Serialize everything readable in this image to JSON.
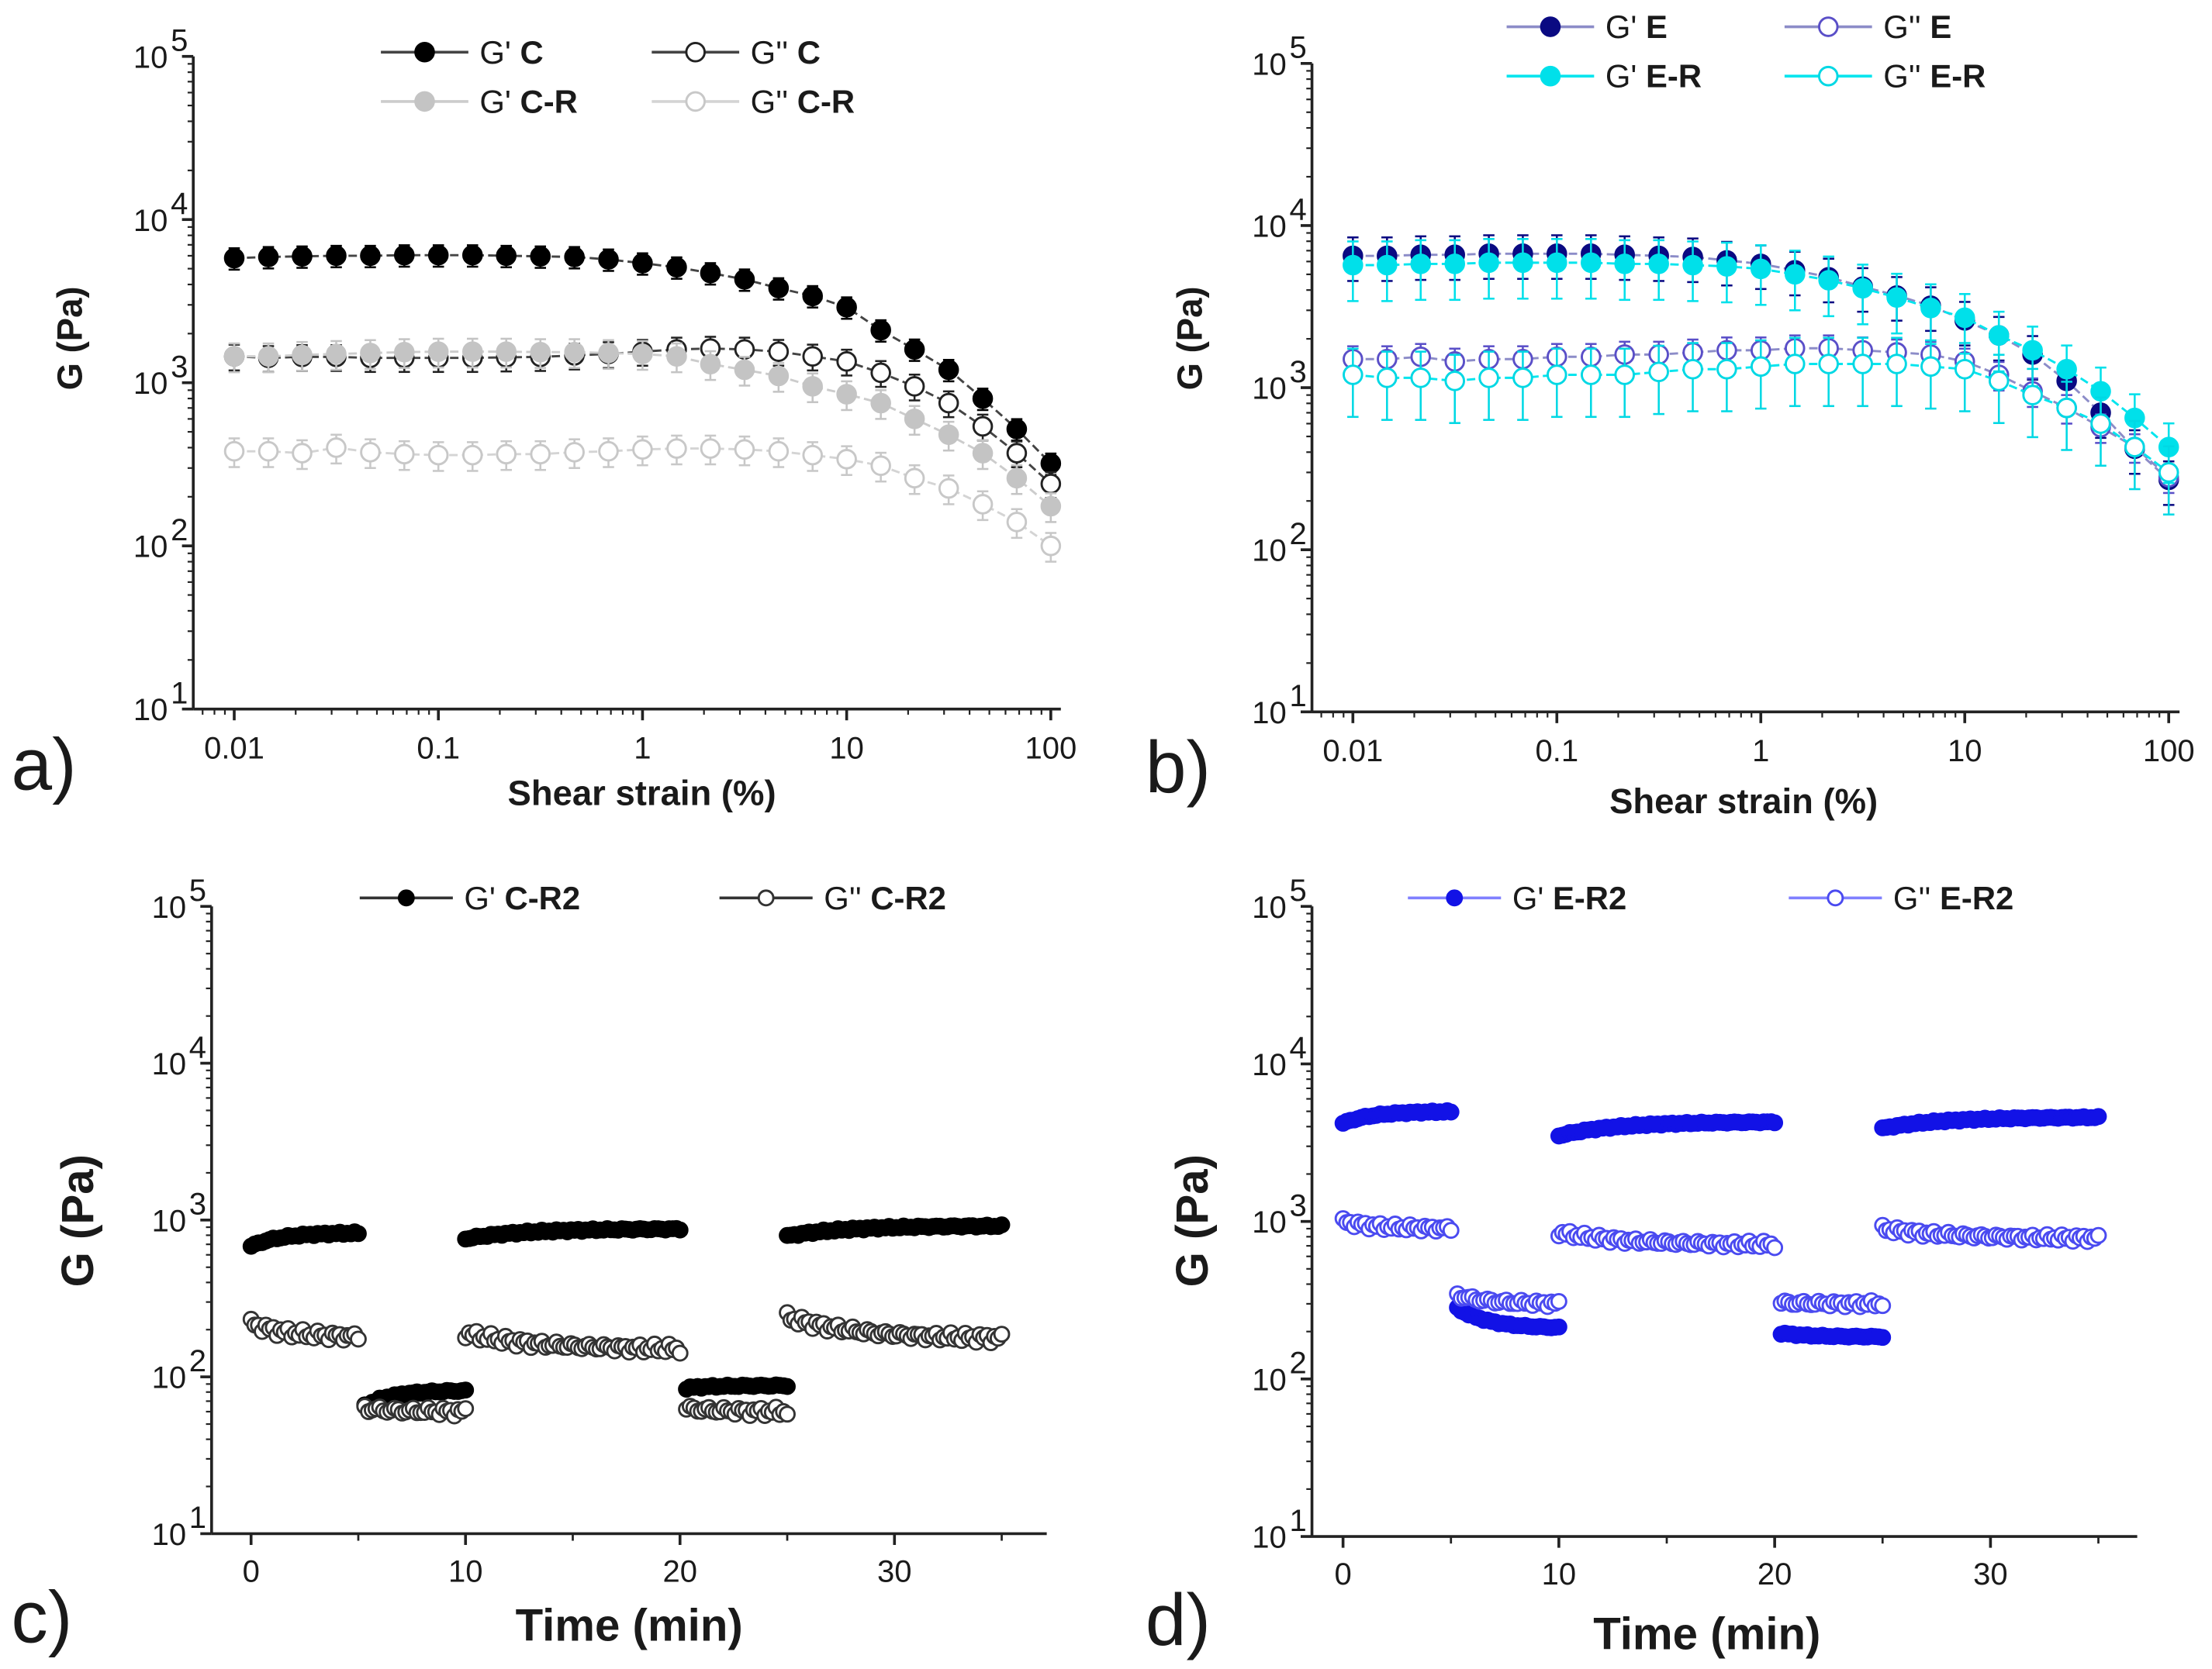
{
  "chart_data": [
    {
      "type": "line",
      "panel_label": "a)",
      "xlabel": "Shear strain (%)",
      "ylabel": "G (Pa)",
      "xscale": "log",
      "yscale": "log",
      "xlim": [
        0.0063,
        112
      ],
      "ylim": [
        10,
        100000
      ],
      "xticks": [
        0.01,
        0.1,
        1,
        10,
        100
      ],
      "xtick_labels": [
        "0.01",
        "0.1",
        "1",
        "10",
        "100"
      ],
      "ytick_labels": [
        {
          "base": "10",
          "exp": "1"
        },
        {
          "base": "10",
          "exp": "2"
        },
        {
          "base": "10",
          "exp": "3"
        },
        {
          "base": "10",
          "exp": "4"
        },
        {
          "base": "10",
          "exp": "5"
        }
      ],
      "legend_position": "top-center",
      "x": [
        0.01,
        0.0147,
        0.0215,
        0.0316,
        0.0464,
        0.0681,
        0.1,
        0.147,
        0.215,
        0.316,
        0.464,
        0.681,
        1,
        1.47,
        2.15,
        3.16,
        4.64,
        6.81,
        10,
        14.7,
        21.5,
        31.6,
        46.4,
        68.1,
        100
      ],
      "series": [
        {
          "prefix": "G'",
          "sample": "C",
          "filled": true,
          "marker_fill": "#000000",
          "marker_stroke": "#000000",
          "line_color": "#444444",
          "error_frac": 0.15,
          "values": [
            5800,
            5900,
            5950,
            6000,
            6000,
            6050,
            6050,
            6050,
            6000,
            5950,
            5900,
            5700,
            5400,
            5100,
            4700,
            4300,
            3800,
            3400,
            2900,
            2100,
            1600,
            1200,
            800,
            520,
            320
          ]
        },
        {
          "prefix": "G''",
          "sample": "C",
          "filled": false,
          "marker_fill": "#ffffff",
          "marker_stroke": "#222222",
          "line_color": "#444444",
          "error_frac": 0.18,
          "values": [
            1450,
            1420,
            1440,
            1440,
            1420,
            1420,
            1420,
            1420,
            1430,
            1440,
            1470,
            1500,
            1550,
            1600,
            1620,
            1600,
            1550,
            1450,
            1350,
            1150,
            950,
            750,
            540,
            370,
            240
          ]
        },
        {
          "prefix": "G'",
          "sample": "C-R",
          "filled": true,
          "marker_fill": "#c4c4c4",
          "marker_stroke": "#c4c4c4",
          "line_color": "#cccccc",
          "error_frac": 0.2,
          "values": [
            1450,
            1450,
            1480,
            1500,
            1520,
            1540,
            1550,
            1550,
            1550,
            1540,
            1540,
            1520,
            1500,
            1450,
            1300,
            1200,
            1100,
            950,
            850,
            750,
            600,
            480,
            370,
            260,
            175
          ]
        },
        {
          "prefix": "G''",
          "sample": "C-R",
          "filled": false,
          "marker_fill": "#ffffff",
          "marker_stroke": "#c8c8c8",
          "line_color": "#d4d4d4",
          "error_frac": 0.2,
          "values": [
            380,
            380,
            370,
            400,
            375,
            365,
            360,
            360,
            365,
            365,
            375,
            380,
            390,
            395,
            395,
            390,
            380,
            360,
            340,
            310,
            260,
            225,
            180,
            140,
            100
          ]
        }
      ]
    },
    {
      "type": "line",
      "panel_label": "b)",
      "xlabel": "Shear strain (%)",
      "ylabel": "G (Pa)",
      "xscale": "log",
      "yscale": "log",
      "xlim": [
        0.0063,
        113
      ],
      "ylim": [
        10,
        100000
      ],
      "xticks": [
        0.01,
        0.1,
        1,
        10,
        100
      ],
      "xtick_labels": [
        "0.01",
        "0.1",
        "1",
        "10",
        "100"
      ],
      "ytick_labels": [
        {
          "base": "10",
          "exp": "1"
        },
        {
          "base": "10",
          "exp": "2"
        },
        {
          "base": "10",
          "exp": "3"
        },
        {
          "base": "10",
          "exp": "4"
        },
        {
          "base": "10",
          "exp": "5"
        }
      ],
      "legend_position": "top-center",
      "x": [
        0.01,
        0.0147,
        0.0215,
        0.0316,
        0.0464,
        0.0681,
        0.1,
        0.147,
        0.215,
        0.316,
        0.464,
        0.681,
        1,
        1.47,
        2.15,
        3.16,
        4.64,
        6.81,
        10,
        14.7,
        21.5,
        31.6,
        46.4,
        68.1,
        100
      ],
      "series": [
        {
          "prefix": "G'",
          "sample": "E",
          "filled": true,
          "marker_fill": "#0a0a82",
          "marker_stroke": "#0a0a82",
          "line_color": "#8c8cc8",
          "error_frac": 0.3,
          "values": [
            6500,
            6500,
            6600,
            6600,
            6700,
            6700,
            6700,
            6700,
            6600,
            6500,
            6400,
            6100,
            5800,
            5300,
            4800,
            4200,
            3700,
            3200,
            2600,
            2100,
            1600,
            1100,
            700,
            420,
            270
          ]
        },
        {
          "prefix": "G''",
          "sample": "E",
          "filled": false,
          "marker_fill": "#ffffff",
          "marker_stroke": "#5a4fc8",
          "line_color": "#8c8cc8",
          "error_frac": 0.2,
          "values": [
            1500,
            1500,
            1550,
            1450,
            1500,
            1500,
            1550,
            1550,
            1600,
            1600,
            1650,
            1700,
            1700,
            1750,
            1750,
            1700,
            1650,
            1600,
            1450,
            1200,
            950,
            750,
            570,
            430,
            280
          ]
        },
        {
          "prefix": "G'",
          "sample": "E-R",
          "filled": true,
          "marker_fill": "#00e0ea",
          "marker_stroke": "#00e0ea",
          "line_color": "#00e5ee",
          "error_frac": 0.4,
          "values": [
            5700,
            5700,
            5800,
            5800,
            5900,
            5900,
            5900,
            5900,
            5800,
            5800,
            5700,
            5600,
            5400,
            5000,
            4600,
            4100,
            3600,
            3100,
            2700,
            2100,
            1700,
            1300,
            950,
            650,
            430
          ]
        },
        {
          "prefix": "G''",
          "sample": "E-R",
          "filled": false,
          "marker_fill": "#ffffff",
          "marker_stroke": "#00d8e4",
          "line_color": "#00e5ee",
          "error_frac": 0.45,
          "values": [
            1200,
            1150,
            1150,
            1100,
            1150,
            1150,
            1200,
            1200,
            1200,
            1250,
            1300,
            1300,
            1350,
            1400,
            1400,
            1400,
            1400,
            1350,
            1300,
            1100,
            900,
            750,
            600,
            430,
            300
          ]
        }
      ]
    },
    {
      "type": "scatter",
      "panel_label": "c)",
      "xlabel": "Time (min)",
      "ylabel": "G (Pa)",
      "xscale": "linear",
      "yscale": "log",
      "xlim": [
        -1.84,
        37.1
      ],
      "ylim": [
        10,
        100000
      ],
      "xticks": [
        0,
        10,
        20,
        30
      ],
      "xtick_labels": [
        "0",
        "10",
        "20",
        "30"
      ],
      "minor_xticks": [
        5,
        15,
        25,
        35
      ],
      "ytick_labels": [
        {
          "base": "10",
          "exp": "1"
        },
        {
          "base": "10",
          "exp": "2"
        },
        {
          "base": "10",
          "exp": "3"
        },
        {
          "base": "10",
          "exp": "4"
        },
        {
          "base": "10",
          "exp": "5"
        }
      ],
      "legend_position": "top-center",
      "series": [
        {
          "prefix": "G'",
          "sample": "C-R2",
          "filled": true,
          "marker_fill": "#000000",
          "marker_stroke": "#000000",
          "line_color": "#333333",
          "noise": 0.02,
          "segments": [
            {
              "t": [
                0,
                5
              ],
              "v": [
                680,
                830
              ],
              "n": 30
            },
            {
              "t": [
                5.3,
                10
              ],
              "v": [
                65,
                82
              ],
              "n": 28
            },
            {
              "t": [
                10,
                20
              ],
              "v": [
                760,
                880
              ],
              "n": 60
            },
            {
              "t": [
                20.3,
                25
              ],
              "v": [
                85,
                88
              ],
              "n": 28
            },
            {
              "t": [
                25,
                35
              ],
              "v": [
                790,
                920
              ],
              "n": 60
            }
          ]
        },
        {
          "prefix": "G''",
          "sample": "C-R2",
          "filled": false,
          "marker_fill": "#ffffff",
          "marker_stroke": "#333333",
          "line_color": "#333333",
          "noise": 0.07,
          "segments": [
            {
              "t": [
                0,
                5
              ],
              "v": [
                220,
                180
              ],
              "n": 30
            },
            {
              "t": [
                5.3,
                10
              ],
              "v": [
                63,
                60
              ],
              "n": 28
            },
            {
              "t": [
                10,
                20
              ],
              "v": [
                190,
                150
              ],
              "n": 60
            },
            {
              "t": [
                20.3,
                25
              ],
              "v": [
                63,
                60
              ],
              "n": 28
            },
            {
              "t": [
                25,
                35
              ],
              "v": [
                240,
                175
              ],
              "n": 60
            }
          ]
        }
      ]
    },
    {
      "type": "scatter",
      "panel_label": "d)",
      "xlabel": "Time (min)",
      "ylabel": "G (Pa)",
      "xscale": "linear",
      "yscale": "log",
      "xlim": [
        -1.44,
        36.8
      ],
      "ylim": [
        10,
        100000
      ],
      "xticks": [
        0,
        10,
        20,
        30
      ],
      "xtick_labels": [
        "0",
        "10",
        "20",
        "30"
      ],
      "minor_xticks": [
        5,
        15,
        25,
        35
      ],
      "ytick_labels": [
        {
          "base": "10",
          "exp": "1"
        },
        {
          "base": "10",
          "exp": "2"
        },
        {
          "base": "10",
          "exp": "3"
        },
        {
          "base": "10",
          "exp": "4"
        },
        {
          "base": "10",
          "exp": "5"
        }
      ],
      "legend_position": "top-center",
      "series": [
        {
          "prefix": "G'",
          "sample": "E-R2",
          "filled": true,
          "marker_fill": "#1212e6",
          "marker_stroke": "#1212e6",
          "line_color": "#8080ff",
          "noise": 0.015,
          "segments": [
            {
              "t": [
                0,
                5
              ],
              "v": [
                4200,
                5000
              ],
              "n": 30
            },
            {
              "t": [
                5.3,
                10
              ],
              "v": [
                280,
                210
              ],
              "n": 28
            },
            {
              "t": [
                10,
                20
              ],
              "v": [
                3500,
                4300
              ],
              "n": 60
            },
            {
              "t": [
                20.3,
                25
              ],
              "v": [
                195,
                185
              ],
              "n": 28
            },
            {
              "t": [
                25,
                35
              ],
              "v": [
                3900,
                4600
              ],
              "n": 60
            }
          ]
        },
        {
          "prefix": "G''",
          "sample": "E-R2",
          "filled": false,
          "marker_fill": "#ffffff",
          "marker_stroke": "#4a4af0",
          "line_color": "#8080ff",
          "noise": 0.05,
          "segments": [
            {
              "t": [
                0,
                5
              ],
              "v": [
                1000,
                900
              ],
              "n": 30
            },
            {
              "t": [
                5.3,
                10
              ],
              "v": [
                340,
                300
              ],
              "n": 28
            },
            {
              "t": [
                10,
                20
              ],
              "v": [
                850,
                710
              ],
              "n": 60
            },
            {
              "t": [
                20.3,
                25
              ],
              "v": [
                305,
                300
              ],
              "n": 28
            },
            {
              "t": [
                25,
                35
              ],
              "v": [
                900,
                780
              ],
              "n": 60
            }
          ]
        }
      ]
    }
  ]
}
